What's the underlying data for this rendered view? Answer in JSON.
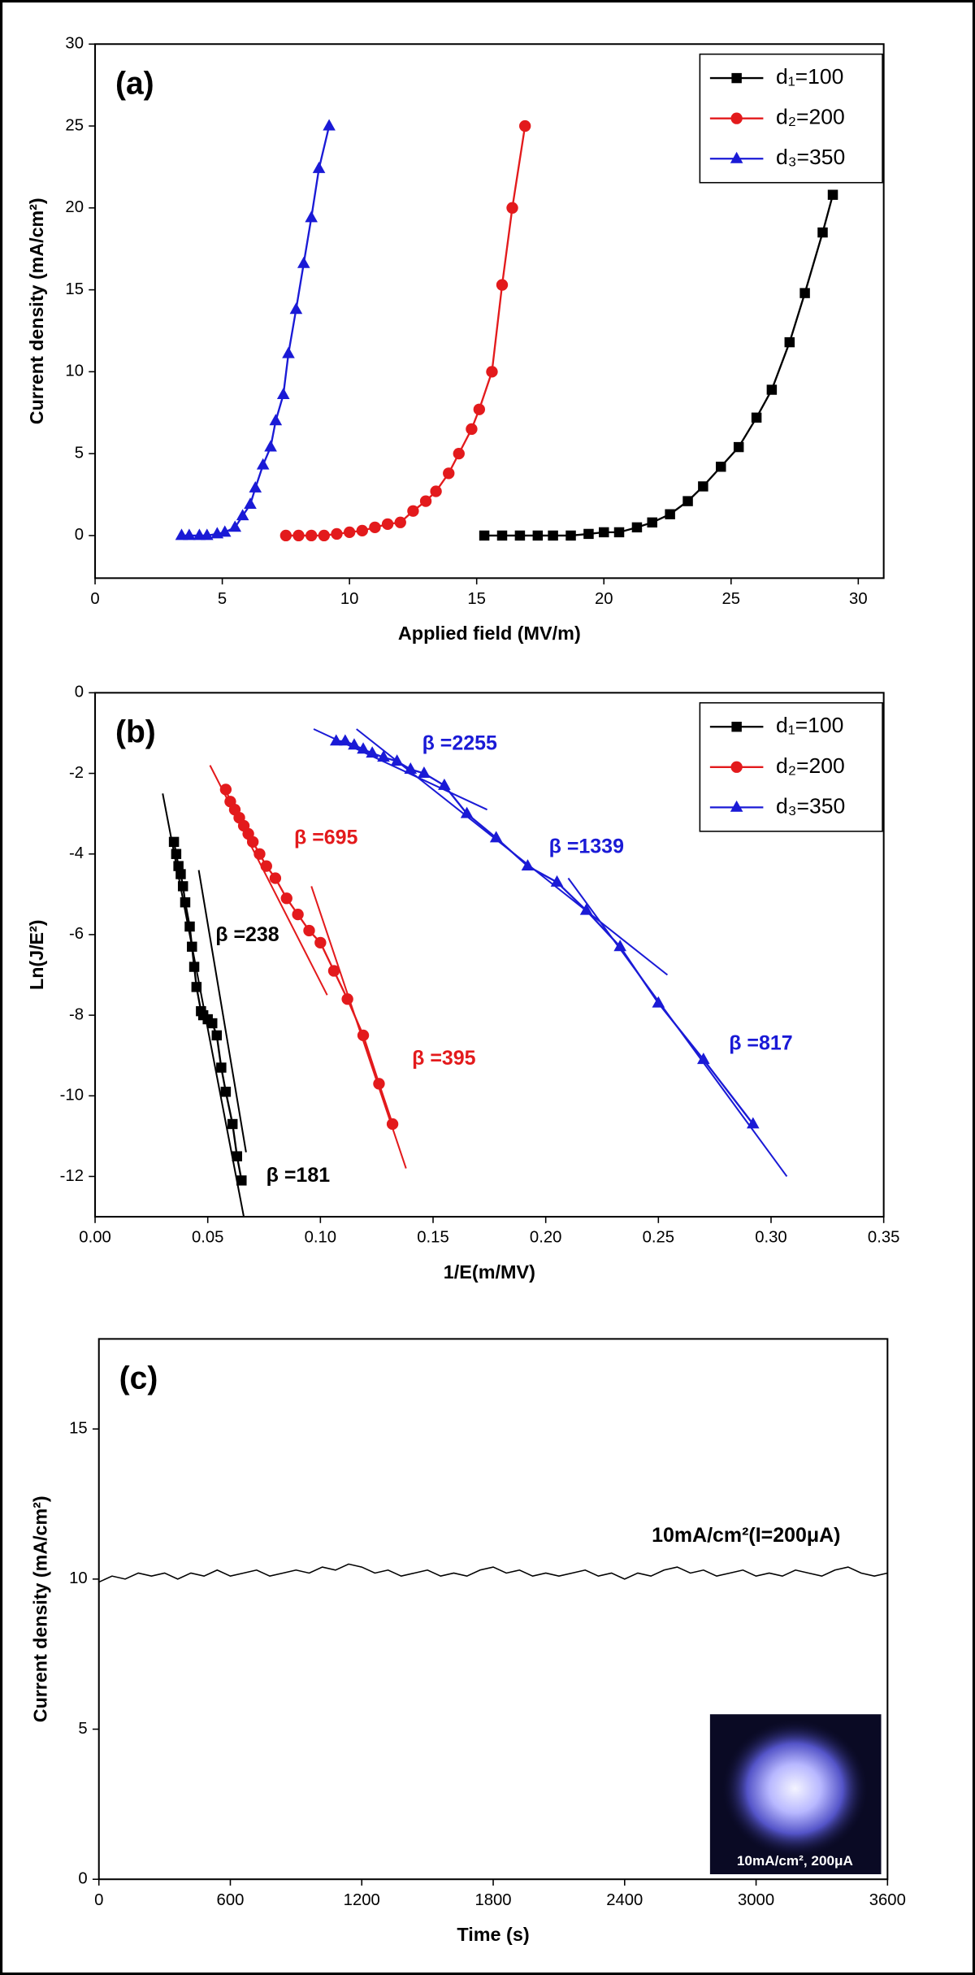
{
  "chart_data": [
    {
      "type": "line",
      "panel_label": "(a)",
      "x_label": "Applied field (MV/m)",
      "y_label": "Current density (mA/cm²)",
      "xlim": [
        0,
        31
      ],
      "ylim": [
        -2.6,
        30
      ],
      "xticks": [
        0,
        5,
        10,
        15,
        20,
        25,
        30
      ],
      "yticks": [
        0,
        5,
        10,
        15,
        20,
        25,
        30
      ],
      "legend": "upper right",
      "series": [
        {
          "name": "d₁=100",
          "color": "#000000",
          "marker": "square",
          "x": [
            15.3,
            16.0,
            16.7,
            17.4,
            18.0,
            18.7,
            19.4,
            20.0,
            20.6,
            21.3,
            21.9,
            22.6,
            23.3,
            23.9,
            24.6,
            25.3,
            26.0,
            26.6,
            27.3,
            27.9,
            28.6,
            29.0
          ],
          "values": [
            0,
            0,
            0,
            0,
            0,
            0,
            0.1,
            0.2,
            0.2,
            0.5,
            0.8,
            1.3,
            2.1,
            3,
            4.2,
            5.4,
            7.2,
            8.9,
            11.8,
            14.8,
            18.5,
            20.8
          ]
        },
        {
          "name": "d₂=200",
          "color": "#e31a1c",
          "marker": "circle",
          "x": [
            7.5,
            8.0,
            8.5,
            9.0,
            9.5,
            10.0,
            10.5,
            11.0,
            11.5,
            12.0,
            12.5,
            13.0,
            13.4,
            13.9,
            14.3,
            14.8,
            15.1,
            15.6,
            16.0,
            16.4,
            16.9
          ],
          "values": [
            0,
            0,
            0,
            0,
            0.1,
            0.2,
            0.3,
            0.5,
            0.7,
            0.8,
            1.5,
            2.1,
            2.7,
            3.8,
            5,
            6.5,
            7.7,
            10,
            15.3,
            20,
            25
          ]
        },
        {
          "name": "d₃=350",
          "color": "#1a1ad6",
          "marker": "triangle",
          "x": [
            3.4,
            3.7,
            4.1,
            4.4,
            4.8,
            5.1,
            5.5,
            5.8,
            6.1,
            6.3,
            6.6,
            6.9,
            7.1,
            7.4,
            7.6,
            7.9,
            8.2,
            8.5,
            8.8,
            9.2
          ],
          "values": [
            0,
            0,
            0,
            0,
            0.1,
            0.2,
            0.5,
            1.2,
            1.9,
            2.9,
            4.3,
            5.4,
            7,
            8.6,
            11.1,
            13.8,
            16.6,
            19.4,
            22.4,
            25
          ]
        }
      ]
    },
    {
      "type": "line",
      "panel_label": "(b)",
      "x_label": "1/E(m/MV)",
      "y_label": "Ln(J/E²)",
      "xlim": [
        0,
        0.35
      ],
      "ylim": [
        -13,
        0
      ],
      "xticks": [
        {
          "value": 0,
          "label": "0.00"
        },
        {
          "value": 0.05,
          "label": "0.05"
        },
        {
          "value": 0.1,
          "label": "0.10"
        },
        {
          "value": 0.15,
          "label": "0.15"
        },
        {
          "value": 0.2,
          "label": "0.20"
        },
        {
          "value": 0.25,
          "label": "0.25"
        },
        {
          "value": 0.3,
          "label": "0.30"
        },
        {
          "value": 0.35,
          "label": "0.35"
        }
      ],
      "yticks": [
        0,
        -2,
        -4,
        -6,
        -8,
        -10,
        -12
      ],
      "legend": "upper right",
      "series": [
        {
          "name": "d₁=100",
          "color": "#000000",
          "marker": "square",
          "x": [
            0.035,
            0.036,
            0.037,
            0.038,
            0.039,
            0.04,
            0.042,
            0.043,
            0.044,
            0.045,
            0.047,
            0.048,
            0.05,
            0.052,
            0.054,
            0.056,
            0.058,
            0.061,
            0.063,
            0.065
          ],
          "values": [
            -3.7,
            -4.0,
            -4.3,
            -4.5,
            -4.8,
            -5.2,
            -5.8,
            -6.3,
            -6.8,
            -7.3,
            -7.9,
            -8.0,
            -8.1,
            -8.2,
            -8.5,
            -9.3,
            -9.9,
            -10.7,
            -11.5,
            -12.1
          ]
        },
        {
          "name": "d₂=200",
          "color": "#e31a1c",
          "marker": "circle",
          "x": [
            0.058,
            0.06,
            0.062,
            0.064,
            0.066,
            0.068,
            0.07,
            0.073,
            0.076,
            0.08,
            0.085,
            0.09,
            0.095,
            0.1,
            0.106,
            0.112,
            0.119,
            0.126,
            0.132
          ],
          "values": [
            -2.4,
            -2.7,
            -2.9,
            -3.1,
            -3.3,
            -3.5,
            -3.7,
            -4.0,
            -4.3,
            -4.6,
            -5.1,
            -5.5,
            -5.9,
            -6.2,
            -6.9,
            -7.6,
            -8.5,
            -9.7,
            -10.7
          ]
        },
        {
          "name": "d₃=350",
          "color": "#1a1ad6",
          "marker": "triangle",
          "x": [
            0.107,
            0.111,
            0.115,
            0.119,
            0.123,
            0.128,
            0.134,
            0.14,
            0.146,
            0.155,
            0.165,
            0.178,
            0.192,
            0.205,
            0.218,
            0.233,
            0.25,
            0.27,
            0.292
          ],
          "values": [
            -1.2,
            -1.2,
            -1.3,
            -1.4,
            -1.5,
            -1.6,
            -1.7,
            -1.9,
            -2.0,
            -2.3,
            -3.0,
            -3.6,
            -4.3,
            -4.7,
            -5.4,
            -6.3,
            -7.7,
            -9.1,
            -10.7
          ]
        }
      ],
      "fits": [
        {
          "color": "#000000",
          "x": [
            0.03,
            0.066
          ],
          "y": [
            -2.5,
            -13
          ]
        },
        {
          "color": "#000000",
          "x": [
            0.046,
            0.067
          ],
          "y": [
            -4.4,
            -11.4
          ]
        },
        {
          "color": "#e31a1c",
          "x": [
            0.051,
            0.103
          ],
          "y": [
            -1.8,
            -7.5
          ]
        },
        {
          "color": "#e31a1c",
          "x": [
            0.096,
            0.138
          ],
          "y": [
            -4.8,
            -11.8
          ]
        },
        {
          "color": "#1a1ad6",
          "x": [
            0.097,
            0.174
          ],
          "y": [
            -0.9,
            -2.9
          ]
        },
        {
          "color": "#1a1ad6",
          "x": [
            0.116,
            0.254
          ],
          "y": [
            -0.9,
            -7.0
          ]
        },
        {
          "color": "#1a1ad6",
          "x": [
            0.21,
            0.307
          ],
          "y": [
            -4.6,
            -12.0
          ]
        }
      ],
      "annotations": [
        {
          "text": "β =2255",
          "color": "#1a1ad6"
        },
        {
          "text": "β =1339",
          "color": "#1a1ad6"
        },
        {
          "text": "β =817",
          "color": "#1a1ad6"
        },
        {
          "text": "β =695",
          "color": "#e31a1c"
        },
        {
          "text": "β =395",
          "color": "#e31a1c"
        },
        {
          "text": "β =238",
          "color": "#000000"
        },
        {
          "text": "β =181",
          "color": "#000000"
        }
      ]
    },
    {
      "type": "line",
      "panel_label": "(c)",
      "x_label": "Time (s)",
      "y_label": "Current density (mA/cm²)",
      "xlim": [
        0,
        3600
      ],
      "ylim": [
        0,
        18
      ],
      "xticks": [
        0,
        600,
        1200,
        1800,
        2400,
        3000,
        3600
      ],
      "yticks": [
        0,
        5,
        10,
        15
      ],
      "series": [
        {
          "color": "#000000",
          "marker": "none",
          "x": [
            0,
            60,
            120,
            180,
            240,
            300,
            360,
            420,
            480,
            540,
            600,
            660,
            720,
            780,
            840,
            900,
            960,
            1020,
            1080,
            1140,
            1200,
            1260,
            1320,
            1380,
            1440,
            1500,
            1560,
            1620,
            1680,
            1740,
            1800,
            1860,
            1920,
            1980,
            2040,
            2100,
            2160,
            2220,
            2280,
            2340,
            2400,
            2460,
            2520,
            2580,
            2640,
            2700,
            2760,
            2820,
            2880,
            2940,
            3000,
            3060,
            3120,
            3180,
            3240,
            3300,
            3360,
            3420,
            3480,
            3540,
            3600
          ],
          "values": [
            9.9,
            10.1,
            10.0,
            10.2,
            10.1,
            10.2,
            10.0,
            10.2,
            10.1,
            10.3,
            10.1,
            10.2,
            10.3,
            10.1,
            10.2,
            10.3,
            10.2,
            10.4,
            10.3,
            10.5,
            10.4,
            10.2,
            10.3,
            10.1,
            10.2,
            10.3,
            10.1,
            10.2,
            10.1,
            10.3,
            10.4,
            10.2,
            10.3,
            10.1,
            10.2,
            10.1,
            10.2,
            10.3,
            10.1,
            10.2,
            10.0,
            10.2,
            10.1,
            10.3,
            10.4,
            10.2,
            10.3,
            10.1,
            10.2,
            10.3,
            10.1,
            10.2,
            10.1,
            10.3,
            10.2,
            10.1,
            10.3,
            10.4,
            10.2,
            10.1,
            10.2
          ]
        }
      ],
      "annotation": "10mA/cm²(I=200μA)",
      "inset_label": "10mA/cm², 200μA"
    }
  ]
}
